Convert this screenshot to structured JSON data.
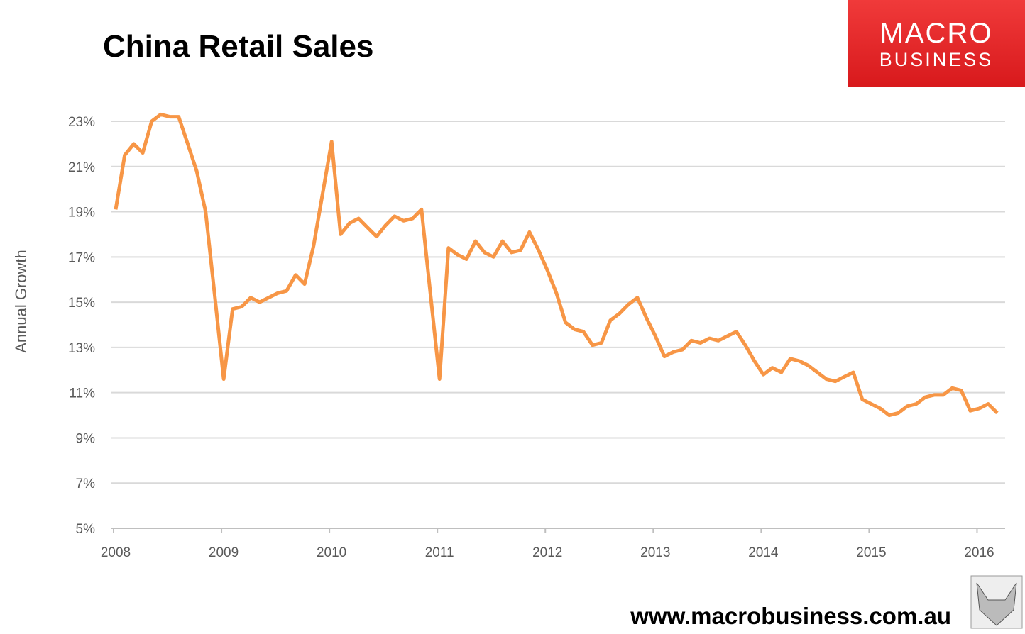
{
  "chart_data": {
    "type": "line",
    "title": "China Retail Sales",
    "ylabel": "Annual Growth",
    "logo": [
      "MACRO",
      "BUSINESS"
    ],
    "footer": "www.macrobusiness.com.au",
    "xlim": [
      2008,
      2016.26
    ],
    "xticks": [
      2008,
      2009,
      2010,
      2011,
      2012,
      2013,
      2014,
      2015,
      2016
    ],
    "ylim": [
      5,
      23
    ],
    "yticks": [
      {
        "value": 5,
        "label": "5%"
      },
      {
        "value": 7,
        "label": "7%"
      },
      {
        "value": 9,
        "label": "9%"
      },
      {
        "value": 11,
        "label": "11%"
      },
      {
        "value": 13,
        "label": "13%"
      },
      {
        "value": 15,
        "label": "15%"
      },
      {
        "value": 17,
        "label": "17%"
      },
      {
        "value": 19,
        "label": "19%"
      },
      {
        "value": 21,
        "label": "21%"
      },
      {
        "value": 23,
        "label": "23%"
      }
    ],
    "grid": true,
    "x": [
      2008.02,
      2008.103,
      2008.187,
      2008.27,
      2008.353,
      2008.437,
      2008.52,
      2008.603,
      2008.687,
      2008.77,
      2008.853,
      2008.937,
      2009.02,
      2009.103,
      2009.187,
      2009.27,
      2009.353,
      2009.437,
      2009.52,
      2009.603,
      2009.687,
      2009.77,
      2009.853,
      2009.937,
      2010.02,
      2010.103,
      2010.187,
      2010.27,
      2010.353,
      2010.437,
      2010.52,
      2010.603,
      2010.687,
      2010.77,
      2010.853,
      2010.937,
      2011.02,
      2011.103,
      2011.187,
      2011.27,
      2011.353,
      2011.437,
      2011.52,
      2011.603,
      2011.687,
      2011.77,
      2011.853,
      2011.937,
      2012.02,
      2012.103,
      2012.187,
      2012.27,
      2012.353,
      2012.437,
      2012.52,
      2012.603,
      2012.687,
      2012.77,
      2012.853,
      2012.937,
      2013.02,
      2013.103,
      2013.187,
      2013.27,
      2013.353,
      2013.437,
      2013.52,
      2013.603,
      2013.687,
      2013.77,
      2013.853,
      2013.937,
      2014.02,
      2014.103,
      2014.187,
      2014.27,
      2014.353,
      2014.437,
      2014.52,
      2014.603,
      2014.687,
      2014.77,
      2014.853,
      2014.937,
      2015.02,
      2015.103,
      2015.187,
      2015.27,
      2015.353,
      2015.437,
      2015.52,
      2015.603,
      2015.687,
      2015.77,
      2015.853,
      2015.937,
      2016.02,
      2016.103,
      2016.187
    ],
    "series": [
      {
        "color": "#f79646",
        "values": [
          19.1,
          21.5,
          22.0,
          21.6,
          23.0,
          23.3,
          23.2,
          23.2,
          22.0,
          20.8,
          19.0,
          15.3,
          11.6,
          14.7,
          14.8,
          15.2,
          15.0,
          15.2,
          15.4,
          15.5,
          16.2,
          15.8,
          17.5,
          19.8,
          22.1,
          18.0,
          18.5,
          18.7,
          18.3,
          17.9,
          18.4,
          18.8,
          18.6,
          18.7,
          19.1,
          15.3,
          11.6,
          17.4,
          17.1,
          16.9,
          17.7,
          17.2,
          17.0,
          17.7,
          17.2,
          17.3,
          18.1,
          17.3,
          16.4,
          15.4,
          14.1,
          13.8,
          13.7,
          13.1,
          13.2,
          14.2,
          14.5,
          14.9,
          15.2,
          14.3,
          13.5,
          12.6,
          12.8,
          12.9,
          13.3,
          13.2,
          13.4,
          13.3,
          13.5,
          13.7,
          13.1,
          12.4,
          11.8,
          12.1,
          11.9,
          12.5,
          12.4,
          12.2,
          11.9,
          11.6,
          11.5,
          11.7,
          11.9,
          10.7,
          10.5,
          10.3,
          10.0,
          10.1,
          10.4,
          10.5,
          10.8,
          10.9,
          10.9,
          11.2,
          11.1,
          10.2,
          10.3,
          10.5,
          10.1
        ]
      }
    ]
  }
}
